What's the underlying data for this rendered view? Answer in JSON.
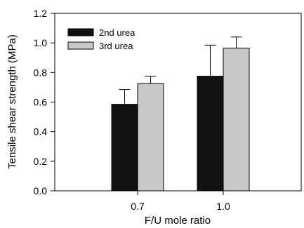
{
  "chart_data": {
    "type": "bar",
    "categories": [
      "0.7",
      "1.0"
    ],
    "series": [
      {
        "name": "2nd urea",
        "values": [
          0.585,
          0.775
        ],
        "errors": [
          0.1,
          0.21
        ],
        "color": "#111111"
      },
      {
        "name": "3rd urea",
        "values": [
          0.725,
          0.965
        ],
        "errors": [
          0.05,
          0.075
        ],
        "color": "#c8c8c8"
      }
    ],
    "xlabel": "F/U mole ratio",
    "ylabel": "Tensile shear strength (MPa)",
    "ylim": [
      0,
      1.2
    ],
    "yticks": [
      "0.0",
      "0.2",
      "0.4",
      "0.6",
      "0.8",
      "1.0",
      "1.2"
    ],
    "grid": false,
    "legend_position": "top-left"
  }
}
